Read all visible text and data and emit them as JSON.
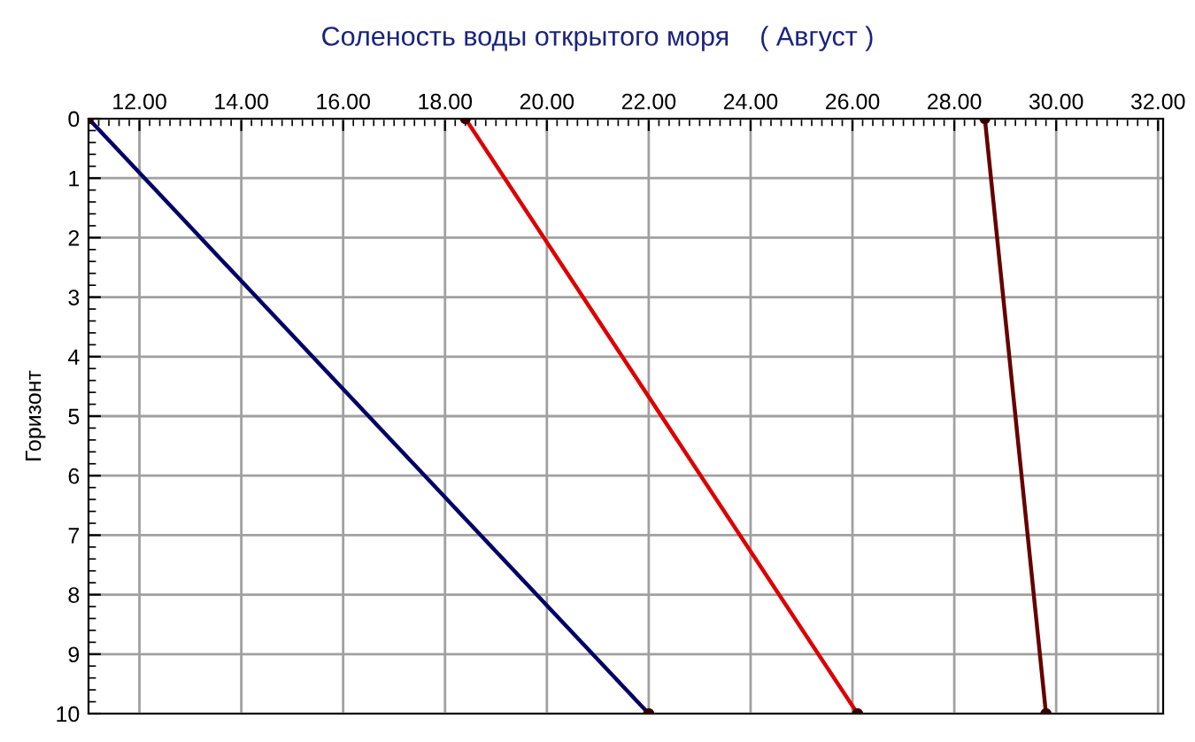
{
  "chart_data": {
    "type": "line",
    "title": "Соленость воды открытого моря    ( Август )",
    "ylabel": "Горизонт",
    "series": [
      {
        "color": "#000066",
        "x": [
          11.0,
          22.0
        ],
        "values": [
          0,
          10
        ]
      },
      {
        "color": "#dd0000",
        "x": [
          18.4,
          26.1
        ],
        "values": [
          0,
          10
        ]
      },
      {
        "color": "#660000",
        "x": [
          28.6,
          29.8
        ],
        "values": [
          0,
          10
        ]
      }
    ],
    "xlim": [
      11,
      32.1
    ],
    "xticks": [
      {
        "value": 12,
        "label": "12.00"
      },
      {
        "value": 14,
        "label": "14.00"
      },
      {
        "value": 16,
        "label": "16.00"
      },
      {
        "value": 18,
        "label": "18.00"
      },
      {
        "value": 20,
        "label": "20.00"
      },
      {
        "value": 22,
        "label": "22.00"
      },
      {
        "value": 24,
        "label": "24.00"
      },
      {
        "value": 26,
        "label": "26.00"
      },
      {
        "value": 28,
        "label": "28.00"
      },
      {
        "value": 30,
        "label": "30.00"
      },
      {
        "value": 32,
        "label": "32.00"
      }
    ],
    "ylim": [
      10,
      0
    ],
    "yticks": [
      0,
      1,
      2,
      3,
      4,
      5,
      6,
      7,
      8,
      9,
      10
    ],
    "grid": true,
    "marker": "circle",
    "line_style": "solid",
    "legend": false
  }
}
